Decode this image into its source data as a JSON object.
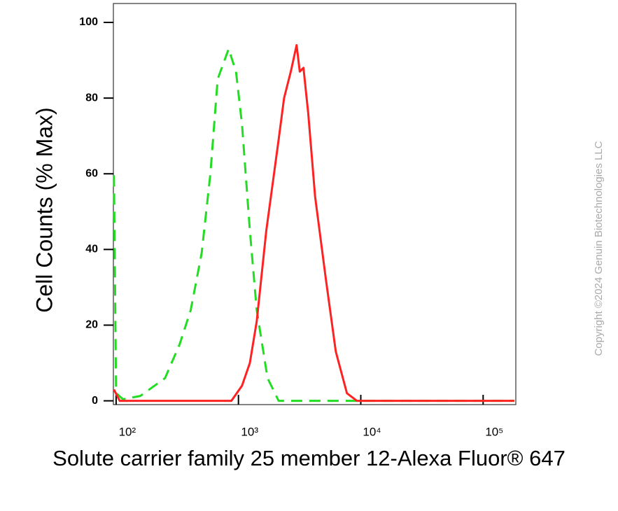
{
  "chart_data": {
    "type": "line",
    "ylabel": "Cell Counts (% Max)",
    "xlabel": "Solute carrier family 25 member 12-Alexa Fluor® 647",
    "copyright": "Copyright ©2024 Genuin Biotechnologies LLC",
    "xscale": "log",
    "xlim": [
      95,
      185000
    ],
    "ylim": [
      -1,
      105
    ],
    "xticks": [
      {
        "value": 100,
        "label": "10²"
      },
      {
        "value": 1000,
        "label": "10³"
      },
      {
        "value": 10000,
        "label": "10⁴"
      },
      {
        "value": 100000,
        "label": "10⁵"
      }
    ],
    "yticks": [
      0,
      20,
      40,
      60,
      80,
      100
    ],
    "series": [
      {
        "color": "#22dd22",
        "style": "dashed",
        "x": [
          96,
          100,
          114,
          158,
          251,
          331,
          407,
          500,
          590,
          676,
          832,
          955,
          1070,
          1240,
          1410,
          1730,
          2130,
          8150,
          180000
        ],
        "values": [
          59.6,
          2,
          0.4,
          1.3,
          6,
          15,
          24,
          39,
          60,
          85,
          93,
          87,
          73,
          45,
          24,
          6,
          0,
          0,
          0
        ]
      },
      {
        "color": "#ff2222",
        "style": "solid",
        "x": [
          96,
          107,
          453,
          875,
          1070,
          1240,
          1410,
          1690,
          2130,
          2360,
          2680,
          2990,
          3170,
          3400,
          3720,
          4230,
          5190,
          6250,
          7700,
          9300,
          180000
        ],
        "values": [
          3,
          0,
          0,
          0,
          4,
          10,
          21,
          45,
          69,
          80,
          87,
          94,
          87,
          88,
          76,
          54,
          32,
          13,
          2,
          0,
          0
        ]
      }
    ]
  }
}
